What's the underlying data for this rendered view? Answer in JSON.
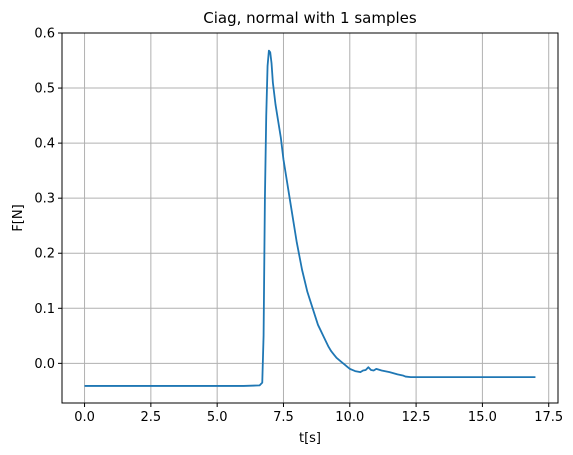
{
  "chart_data": {
    "type": "line",
    "title": "Ciag, normal with 1 samples",
    "xlabel": "t[s]",
    "ylabel": "F[N]",
    "xlim": [
      -0.85,
      17.85
    ],
    "ylim": [
      -0.072,
      0.6
    ],
    "xticks": [
      0.0,
      2.5,
      5.0,
      7.5,
      10.0,
      12.5,
      15.0,
      17.5
    ],
    "xtick_labels": [
      "0.0",
      "2.5",
      "5.0",
      "7.5",
      "10.0",
      "12.5",
      "15.0",
      "17.5"
    ],
    "yticks": [
      0.0,
      0.1,
      0.2,
      0.3,
      0.4,
      0.5,
      0.6
    ],
    "ytick_labels": [
      "0.0",
      "0.1",
      "0.2",
      "0.3",
      "0.4",
      "0.5",
      "0.6"
    ],
    "grid": true,
    "line_color": "#1f77b4",
    "grid_color": "#b0b0b0",
    "series": [
      {
        "x": [
          0.0,
          1.0,
          2.0,
          3.0,
          4.0,
          5.0,
          6.0,
          6.6,
          6.7,
          6.75,
          6.8,
          6.85,
          6.9,
          6.95,
          7.0,
          7.05,
          7.1,
          7.2,
          7.3,
          7.4,
          7.5,
          7.6,
          7.7,
          7.8,
          7.9,
          8.0,
          8.1,
          8.2,
          8.3,
          8.4,
          8.5,
          8.6,
          8.7,
          8.8,
          8.9,
          9.0,
          9.1,
          9.2,
          9.3,
          9.4,
          9.5,
          9.6,
          9.7,
          9.8,
          9.9,
          10.0,
          10.1,
          10.2,
          10.3,
          10.4,
          10.5,
          10.6,
          10.7,
          10.8,
          10.9,
          11.0,
          11.2,
          11.5,
          11.8,
          12.0,
          12.1,
          12.3,
          12.5,
          13.0,
          13.5,
          14.0,
          14.5,
          15.0,
          15.5,
          16.0,
          16.5,
          17.0
        ],
        "y": [
          -0.041,
          -0.041,
          -0.041,
          -0.041,
          -0.041,
          -0.041,
          -0.041,
          -0.04,
          -0.035,
          0.05,
          0.3,
          0.45,
          0.54,
          0.568,
          0.565,
          0.545,
          0.51,
          0.47,
          0.44,
          0.41,
          0.37,
          0.34,
          0.31,
          0.28,
          0.25,
          0.22,
          0.195,
          0.17,
          0.15,
          0.13,
          0.115,
          0.1,
          0.085,
          0.07,
          0.06,
          0.05,
          0.04,
          0.03,
          0.022,
          0.016,
          0.01,
          0.006,
          0.002,
          -0.002,
          -0.006,
          -0.01,
          -0.012,
          -0.014,
          -0.015,
          -0.016,
          -0.013,
          -0.012,
          -0.007,
          -0.012,
          -0.013,
          -0.01,
          -0.013,
          -0.016,
          -0.02,
          -0.022,
          -0.024,
          -0.025,
          -0.025,
          -0.025,
          -0.025,
          -0.025,
          -0.025,
          -0.025,
          -0.025,
          -0.025,
          -0.025,
          -0.025
        ]
      }
    ]
  }
}
